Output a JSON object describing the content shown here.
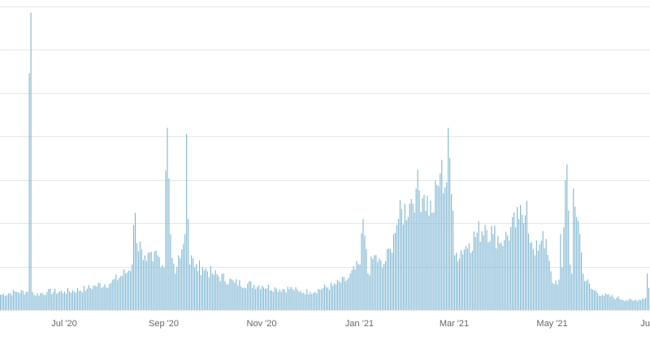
{
  "chart_data": {
    "type": "bar",
    "title": "",
    "xlabel": "",
    "ylabel": "",
    "x_range": [
      "2020-05-22",
      "2021-07-01"
    ],
    "ylim": [
      0,
      100
    ],
    "grid": "horizontal",
    "legend": "none",
    "y_gridlines": [
      0,
      14.3,
      28.6,
      42.9,
      57.2,
      71.5,
      85.8,
      100.1
    ],
    "x_ticks": [
      {
        "date": "2020-07-01",
        "label": "Jul '20"
      },
      {
        "date": "2020-09-01",
        "label": "Sep '20"
      },
      {
        "date": "2020-11-01",
        "label": "Nov '20"
      },
      {
        "date": "2021-01-01",
        "label": "Jan '21"
      },
      {
        "date": "2021-03-01",
        "label": "Mar '21"
      },
      {
        "date": "2021-05-01",
        "label": "May '21"
      },
      {
        "date": "2021-07-01",
        "label": "Ju"
      }
    ],
    "colors": {
      "bar": "#7cb5d2",
      "grid": "#e6e6e6",
      "axis_text": "#666666"
    },
    "series": [
      {
        "anchor_dates": [
          "2020-05-22",
          "2020-06-01",
          "2020-06-08",
          "2020-06-09",
          "2020-06-10",
          "2020-06-11",
          "2020-06-12",
          "2020-06-20",
          "2020-07-01",
          "2020-07-15",
          "2020-07-20",
          "2020-07-30",
          "2020-08-10",
          "2020-08-12",
          "2020-08-13",
          "2020-08-14",
          "2020-08-15",
          "2020-08-18",
          "2020-08-20",
          "2020-08-25",
          "2020-08-28",
          "2020-08-30",
          "2020-09-01",
          "2020-09-02",
          "2020-09-03",
          "2020-09-05",
          "2020-09-08",
          "2020-09-10",
          "2020-09-12",
          "2020-09-14",
          "2020-09-15",
          "2020-09-16",
          "2020-09-17",
          "2020-09-18",
          "2020-09-20",
          "2020-09-25",
          "2020-10-01",
          "2020-10-15",
          "2020-11-01",
          "2020-11-10",
          "2020-11-20",
          "2020-11-24",
          "2020-12-01",
          "2020-12-15",
          "2020-12-24",
          "2021-01-01",
          "2021-01-03",
          "2021-01-05",
          "2021-01-06",
          "2021-01-10",
          "2021-01-15",
          "2021-01-20",
          "2021-01-22",
          "2021-01-25",
          "2021-02-01",
          "2021-02-05",
          "2021-02-10",
          "2021-02-15",
          "2021-02-20",
          "2021-02-24",
          "2021-02-25",
          "2021-02-26",
          "2021-03-01",
          "2021-03-10",
          "2021-03-20",
          "2021-03-25",
          "2021-04-01",
          "2021-04-10",
          "2021-04-15",
          "2021-04-17",
          "2021-04-20",
          "2021-04-25",
          "2021-05-01",
          "2021-05-05",
          "2021-05-06",
          "2021-05-07",
          "2021-05-10",
          "2021-05-12",
          "2021-05-13",
          "2021-05-14",
          "2021-05-18",
          "2021-05-20",
          "2021-05-25",
          "2021-06-01",
          "2021-06-10",
          "2021-06-20",
          "2021-06-28",
          "2021-06-29",
          "2021-07-01"
        ],
        "values": [
          5,
          6,
          6,
          78,
          98,
          6,
          5,
          6,
          6,
          7,
          8,
          9,
          13,
          15,
          28,
          32,
          22,
          20,
          18,
          16,
          18,
          14,
          14,
          46,
          60,
          25,
          12,
          18,
          20,
          25,
          58,
          30,
          15,
          18,
          14,
          14,
          12,
          9,
          8,
          7,
          7,
          6,
          6,
          8,
          10,
          15,
          30,
          20,
          12,
          18,
          14,
          20,
          25,
          30,
          35,
          40,
          38,
          32,
          45,
          42,
          60,
          50,
          18,
          22,
          28,
          25,
          23,
          30,
          36,
          22,
          18,
          26,
          9,
          10,
          25,
          14,
          48,
          15,
          12,
          40,
          25,
          12,
          7,
          5,
          4,
          3,
          4,
          12,
          4
        ]
      }
    ]
  }
}
